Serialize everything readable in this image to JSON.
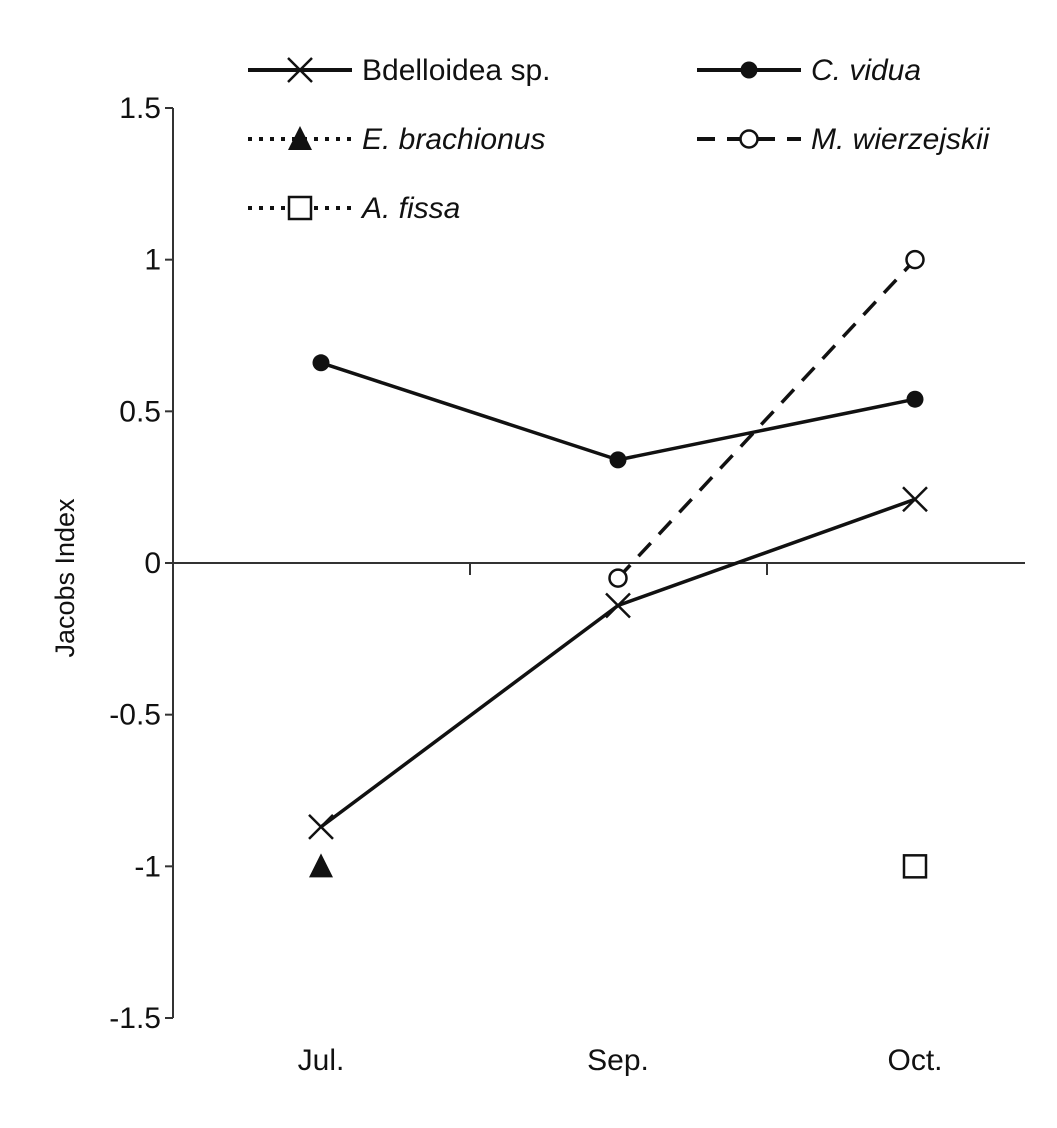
{
  "chart_data": {
    "type": "line",
    "title": "",
    "xlabel": "",
    "ylabel": "Jacobs Index",
    "categories": [
      "Jul.",
      "Sep.",
      "Oct."
    ],
    "ylim": [
      -1.5,
      1.5
    ],
    "yticks": [
      1.5,
      1,
      0.5,
      0,
      -0.5,
      -1,
      -1.5
    ],
    "ytick_labels": [
      "1.5",
      "1",
      "0.5",
      "0",
      "-0.5",
      "-1",
      "-1.5"
    ],
    "legend_position": "top",
    "series": [
      {
        "name": "Bdelloidea sp.",
        "italic": false,
        "line": "solid",
        "marker": "x",
        "values": [
          -0.87,
          -0.14,
          0.21
        ]
      },
      {
        "name": "C. vidua",
        "italic": true,
        "line": "solid",
        "marker": "filled-circle",
        "values": [
          0.66,
          0.34,
          0.54
        ]
      },
      {
        "name": "E. brachionus",
        "italic": true,
        "line": "dotted",
        "marker": "filled-triangle",
        "values": [
          -1.0,
          null,
          null
        ]
      },
      {
        "name": "M. wierzejskii",
        "italic": true,
        "line": "dashed",
        "marker": "open-circle",
        "values": [
          null,
          -0.05,
          1.0
        ]
      },
      {
        "name": "A. fissa",
        "italic": true,
        "line": "dotted",
        "marker": "open-square",
        "values": [
          null,
          null,
          -1.0
        ]
      }
    ]
  }
}
